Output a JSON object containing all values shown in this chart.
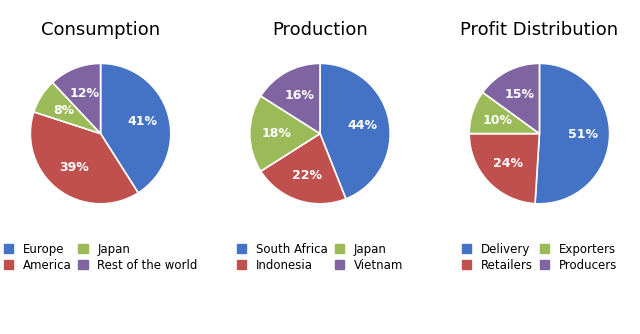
{
  "charts": [
    {
      "title": "Consumption",
      "labels": [
        "Europe",
        "America",
        "Japan",
        "Rest of the world"
      ],
      "values": [
        41,
        39,
        8,
        12
      ],
      "colors": [
        "#4472C4",
        "#C0504D",
        "#9BBB59",
        "#8064A2"
      ],
      "legend_labels": [
        "Europe",
        "America",
        "Japan",
        "Rest of the world"
      ]
    },
    {
      "title": "Production",
      "labels": [
        "South Africa",
        "Indonesia",
        "Japan",
        "Vietnam"
      ],
      "values": [
        44,
        22,
        18,
        16
      ],
      "colors": [
        "#4472C4",
        "#C0504D",
        "#9BBB59",
        "#8064A2"
      ],
      "legend_labels": [
        "South Africa",
        "Indonesia",
        "Japan",
        "Vietnam"
      ]
    },
    {
      "title": "Profit Distribution",
      "labels": [
        "Delivery",
        "Retailers",
        "Exporters",
        "Producers"
      ],
      "values": [
        51,
        24,
        10,
        15
      ],
      "colors": [
        "#4472C4",
        "#C0504D",
        "#9BBB59",
        "#8064A2"
      ],
      "legend_labels": [
        "Delivery",
        "Retailers",
        "Exporters",
        "Producers"
      ]
    }
  ],
  "title_fontsize": 13,
  "label_fontsize": 9,
  "legend_fontsize": 8.5,
  "background_color": "#FFFFFF",
  "startangle": 90
}
